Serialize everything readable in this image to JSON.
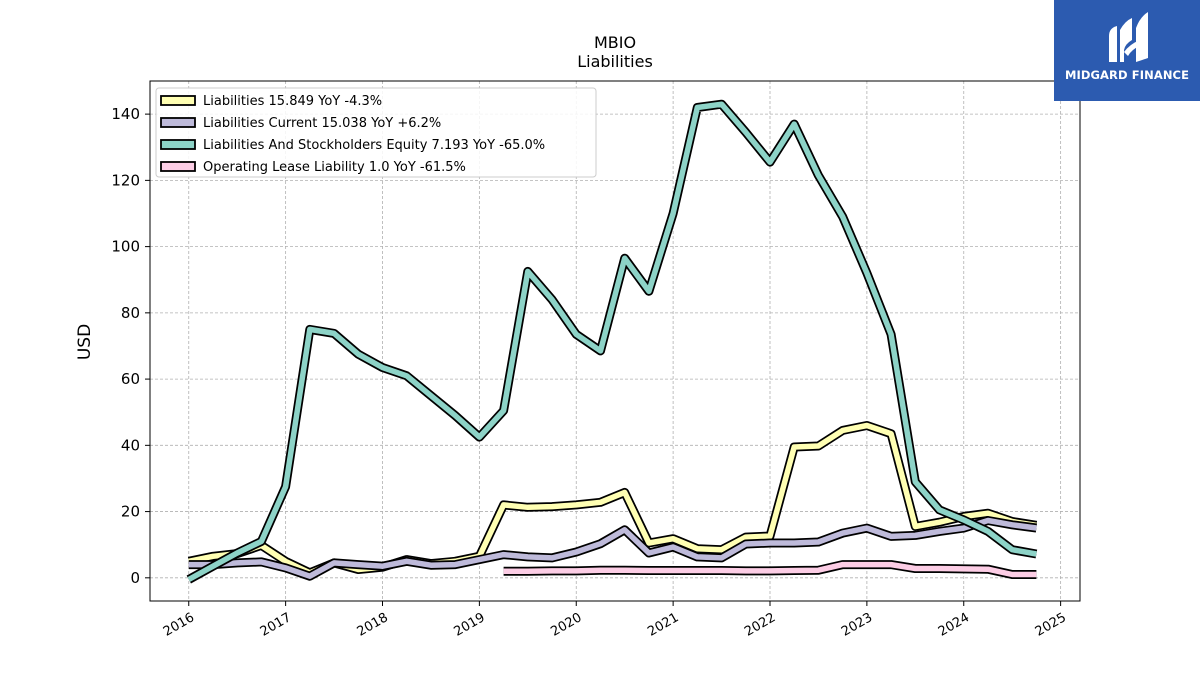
{
  "chart_data": {
    "type": "line",
    "title": "MBIO",
    "subtitle": "Liabilities",
    "ylabel": "USD",
    "xlabel": "",
    "xlim": [
      2015.6,
      2025.2
    ],
    "ylim": [
      -7,
      150
    ],
    "x_ticks": [
      2016,
      2017,
      2018,
      2019,
      2020,
      2021,
      2022,
      2023,
      2024,
      2025
    ],
    "y_ticks": [
      0,
      20,
      40,
      60,
      80,
      100,
      120,
      140
    ],
    "grid": true,
    "legend_position": "top-left",
    "series": [
      {
        "name": "Liabilities  15.849 YoY -4.3%",
        "color": "#ffffb3",
        "points": [
          [
            2016.0,
            5.0
          ],
          [
            2016.25,
            6.5
          ],
          [
            2016.5,
            7.3
          ],
          [
            2016.75,
            9.8
          ],
          [
            2017.0,
            5.0
          ],
          [
            2017.25,
            1.5
          ],
          [
            2017.5,
            4.5
          ],
          [
            2017.75,
            2.5
          ],
          [
            2018.0,
            3.2
          ],
          [
            2018.25,
            5.5
          ],
          [
            2018.5,
            4.3
          ],
          [
            2018.75,
            5.0
          ],
          [
            2019.0,
            6.5
          ],
          [
            2019.25,
            22.0
          ],
          [
            2019.5,
            21.3
          ],
          [
            2019.75,
            21.5
          ],
          [
            2020.0,
            22.0
          ],
          [
            2020.25,
            22.8
          ],
          [
            2020.5,
            25.8
          ],
          [
            2020.75,
            10.5
          ],
          [
            2021.0,
            11.8
          ],
          [
            2021.25,
            8.8
          ],
          [
            2021.5,
            8.5
          ],
          [
            2021.75,
            12.3
          ],
          [
            2022.0,
            12.6
          ],
          [
            2022.25,
            39.5
          ],
          [
            2022.5,
            39.8
          ],
          [
            2022.75,
            44.5
          ],
          [
            2023.0,
            46.0
          ],
          [
            2023.25,
            43.5
          ],
          [
            2023.5,
            15.5
          ],
          [
            2023.75,
            16.8
          ],
          [
            2024.0,
            18.5
          ],
          [
            2024.25,
            19.5
          ],
          [
            2024.5,
            17.0
          ],
          [
            2024.75,
            15.849
          ]
        ]
      },
      {
        "name": "Liabilities Current  15.038 YoY +6.2%",
        "color": "#bebada",
        "points": [
          [
            2016.0,
            4.0
          ],
          [
            2016.25,
            4.0
          ],
          [
            2016.5,
            4.5
          ],
          [
            2016.75,
            4.8
          ],
          [
            2017.0,
            3.0
          ],
          [
            2017.25,
            0.5
          ],
          [
            2017.5,
            4.5
          ],
          [
            2017.75,
            4.0
          ],
          [
            2018.0,
            3.5
          ],
          [
            2018.25,
            5.0
          ],
          [
            2018.5,
            3.8
          ],
          [
            2018.75,
            4.0
          ],
          [
            2019.0,
            5.5
          ],
          [
            2019.25,
            7.0
          ],
          [
            2019.5,
            6.3
          ],
          [
            2019.75,
            6.0
          ],
          [
            2020.0,
            7.8
          ],
          [
            2020.25,
            10.3
          ],
          [
            2020.5,
            14.5
          ],
          [
            2020.75,
            7.5
          ],
          [
            2021.0,
            9.3
          ],
          [
            2021.25,
            6.3
          ],
          [
            2021.5,
            6.0
          ],
          [
            2021.75,
            10.2
          ],
          [
            2022.0,
            10.5
          ],
          [
            2022.25,
            10.5
          ],
          [
            2022.5,
            10.8
          ],
          [
            2022.75,
            13.5
          ],
          [
            2023.0,
            15.0
          ],
          [
            2023.25,
            12.5
          ],
          [
            2023.5,
            12.8
          ],
          [
            2023.75,
            14.0
          ],
          [
            2024.0,
            15.0
          ],
          [
            2024.25,
            17.3
          ],
          [
            2024.5,
            16.0
          ],
          [
            2024.75,
            15.038
          ]
        ]
      },
      {
        "name": "Liabilities And Stockholders Equity  7.193 YoY -65.0%",
        "color": "#8dd3c7",
        "points": [
          [
            2016.0,
            -0.5
          ],
          [
            2016.25,
            3.5
          ],
          [
            2016.5,
            7.5
          ],
          [
            2016.75,
            11.0
          ],
          [
            2017.0,
            27.5
          ],
          [
            2017.25,
            75.0
          ],
          [
            2017.5,
            73.8
          ],
          [
            2017.75,
            67.5
          ],
          [
            2018.0,
            63.5
          ],
          [
            2018.25,
            61.0
          ],
          [
            2018.5,
            55.0
          ],
          [
            2018.75,
            49.0
          ],
          [
            2019.0,
            42.5
          ],
          [
            2019.25,
            50.5
          ],
          [
            2019.5,
            92.5
          ],
          [
            2019.75,
            84.0
          ],
          [
            2020.0,
            73.5
          ],
          [
            2020.25,
            68.5
          ],
          [
            2020.5,
            96.5
          ],
          [
            2020.75,
            86.5
          ],
          [
            2021.0,
            110.0
          ],
          [
            2021.25,
            142.0
          ],
          [
            2021.5,
            143.0
          ],
          [
            2021.75,
            134.5
          ],
          [
            2022.0,
            125.5
          ],
          [
            2022.25,
            137.0
          ],
          [
            2022.5,
            121.5
          ],
          [
            2022.75,
            109.0
          ],
          [
            2023.0,
            92.0
          ],
          [
            2023.25,
            73.5
          ],
          [
            2023.5,
            29.0
          ],
          [
            2023.75,
            20.5
          ],
          [
            2024.0,
            17.5
          ],
          [
            2024.25,
            14.0
          ],
          [
            2024.5,
            8.5
          ],
          [
            2024.75,
            7.193
          ]
        ]
      },
      {
        "name": "Operating Lease Liability  1.0 YoY -61.5%",
        "color": "#fccde5",
        "points": [
          [
            2019.25,
            2.0
          ],
          [
            2019.5,
            2.0
          ],
          [
            2019.75,
            2.1
          ],
          [
            2020.0,
            2.1
          ],
          [
            2020.25,
            2.3
          ],
          [
            2020.5,
            2.3
          ],
          [
            2020.75,
            2.2
          ],
          [
            2021.0,
            2.2
          ],
          [
            2021.25,
            2.2
          ],
          [
            2021.5,
            2.2
          ],
          [
            2021.75,
            2.1
          ],
          [
            2022.0,
            2.1
          ],
          [
            2022.25,
            2.2
          ],
          [
            2022.5,
            2.3
          ],
          [
            2022.75,
            4.0
          ],
          [
            2023.0,
            4.0
          ],
          [
            2023.25,
            4.0
          ],
          [
            2023.5,
            2.8
          ],
          [
            2023.75,
            2.8
          ],
          [
            2024.0,
            2.7
          ],
          [
            2024.25,
            2.6
          ],
          [
            2024.5,
            1.0
          ],
          [
            2024.75,
            1.0
          ]
        ]
      }
    ]
  },
  "logo": {
    "text": "MIDGARD FINANCE",
    "icon": "midgard-logo-icon",
    "background": "#2c5bb0"
  }
}
